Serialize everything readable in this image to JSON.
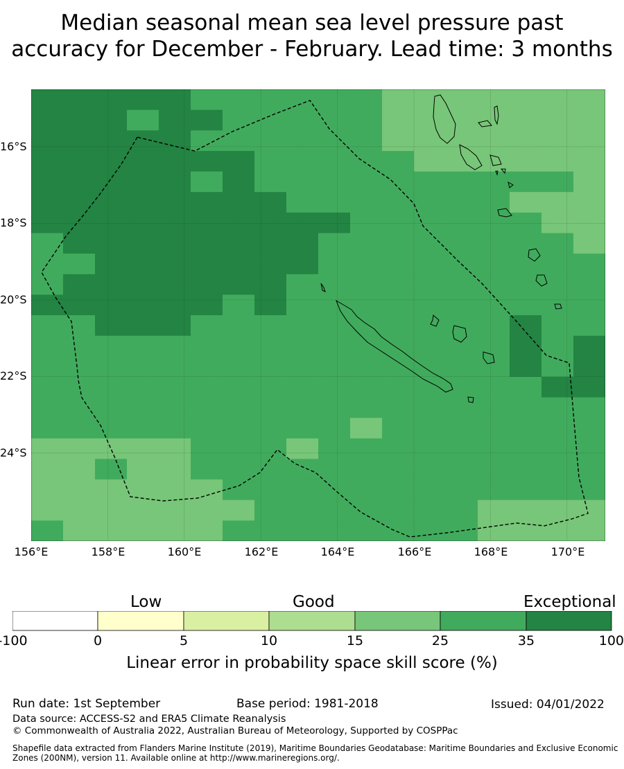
{
  "title": {
    "line1": "Median seasonal mean sea level pressure past",
    "line2": "accuracy for December - February. Lead time: 3 months"
  },
  "map": {
    "lon_range": [
      156,
      171
    ],
    "lat_range": [
      -26.3,
      -14.5
    ],
    "lat_ticks": [
      "16°S",
      "18°S",
      "20°S",
      "22°S",
      "24°S"
    ],
    "lon_ticks": [
      "156°E",
      "158°E",
      "160°E",
      "162°E",
      "164°E",
      "166°E",
      "168°E",
      "170°E"
    ],
    "colors": {
      "c15": "#78c679",
      "c25": "#41ab5d",
      "c35": "#238443"
    }
  },
  "legend": {
    "categories": [
      "Low",
      "Good",
      "Exceptional"
    ],
    "ticks": [
      "-100",
      "0",
      "5",
      "10",
      "15",
      "25",
      "35",
      "100"
    ],
    "colors": [
      "#ffffff",
      "#ffffcc",
      "#d9f0a3",
      "#addd8e",
      "#78c679",
      "#41ab5d",
      "#238443"
    ],
    "title": "Linear error in probability space skill score (%)"
  },
  "footer": {
    "run_date": "Run date: 1st September",
    "base_period": "Base period: 1981-2018",
    "issued": "Issued: 04/01/2022",
    "data_source": "Data source: ACCESS-S2 and ERA5 Climate Reanalysis",
    "copyright": "© Commonwealth of Australia 2022, Australian Bureau of Meteorology, Supported by COSPPac",
    "shapefile": "Shapefile data extracted from Flanders Marine Institute (2019), Maritime Boundaries Geodatabase: Maritime Boundaries and Exclusive Economic Zones (200NM), version 11. Available online at http://www.marineregions.org/."
  }
}
